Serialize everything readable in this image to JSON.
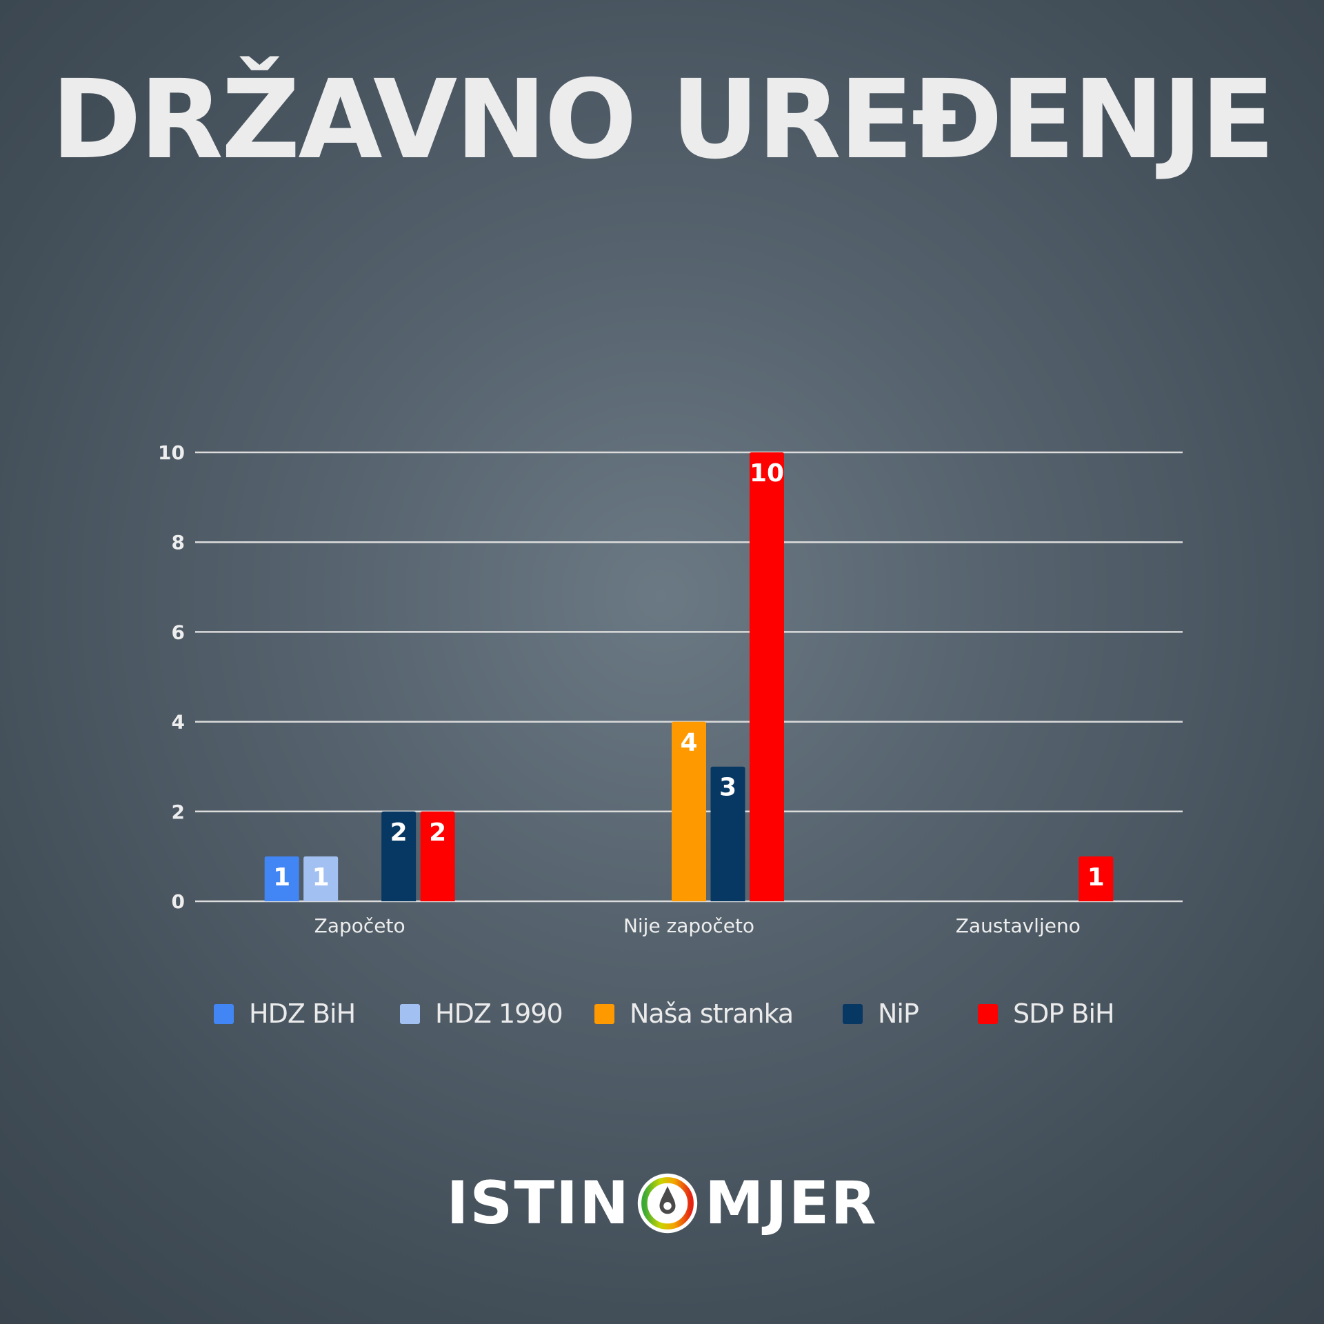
{
  "title": "DRŽAVNO UREĐENJE",
  "chart_data": {
    "type": "bar",
    "categories": [
      "Započeto",
      "Nije započeto",
      "Zaustavljeno"
    ],
    "series": [
      {
        "name": "HDZ BiH",
        "color": "#4285f4",
        "values": [
          1,
          null,
          null
        ]
      },
      {
        "name": "HDZ 1990",
        "color": "#a3c0f2",
        "values": [
          1,
          null,
          null
        ]
      },
      {
        "name": "Naša stranka",
        "color": "#ff9900",
        "values": [
          null,
          4,
          null
        ]
      },
      {
        "name": "NiP",
        "color": "#073763",
        "values": [
          2,
          3,
          null
        ]
      },
      {
        "name": "SDP BiH",
        "color": "#ff0000",
        "values": [
          2,
          10,
          1
        ]
      }
    ],
    "yticks": [
      "0",
      "2",
      "4",
      "6",
      "8",
      "10"
    ],
    "ylim": [
      0,
      10
    ],
    "grid": true,
    "data_labels": true,
    "legend_position": "bottom"
  },
  "logo": {
    "left_text": "ISTIN",
    "right_text": "MJER"
  }
}
